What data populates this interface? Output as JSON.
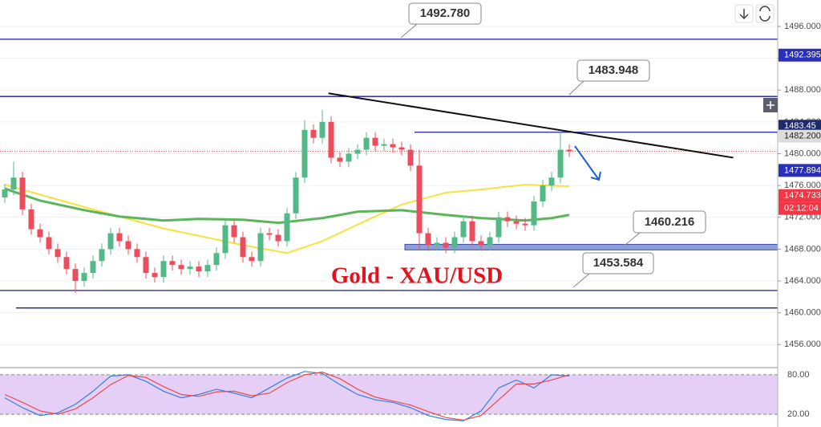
{
  "chart_data": {
    "type": "candlestick",
    "title": "Gold - XAU/USD",
    "ylim": [
      1453.4,
      1499.33
    ],
    "yticks": [
      {
        "value": 1456,
        "label": "1456.000"
      },
      {
        "value": 1460,
        "label": "1460.000"
      },
      {
        "value": 1464,
        "label": "1464.000"
      },
      {
        "value": 1468,
        "label": "1468.000"
      },
      {
        "value": 1472,
        "label": "1472.000"
      },
      {
        "value": 1476,
        "label": "1476.000"
      },
      {
        "value": 1480,
        "label": "1480.000"
      },
      {
        "value": 1484,
        "label": "1484.000"
      },
      {
        "value": 1488,
        "label": "1488.000"
      },
      {
        "value": 1492,
        "label": "1492.000"
      },
      {
        "value": 1496,
        "label": "1496.000"
      }
    ],
    "grid": true,
    "candles": {
      "up_color": "#53b987",
      "down_color": "#eb4d5c",
      "open": [
        1474.5,
        1475.5,
        1477.0,
        1473.0,
        1470.5,
        1469.5,
        1468.0,
        1467.0,
        1465.5,
        1464.0,
        1465.0,
        1466.5,
        1468.0,
        1470.0,
        1469.0,
        1468.0,
        1467.0,
        1465.0,
        1464.5,
        1466.5,
        1466.0,
        1465.5,
        1465.8,
        1465.2,
        1466.0,
        1467.5,
        1471.0,
        1469.5,
        1467.0,
        1466.5,
        1470.0,
        1469.8,
        1469.0,
        1472.5,
        1477.0,
        1483.0,
        1482.0,
        1484.0,
        1479.5,
        1479.0,
        1480.0,
        1480.5,
        1482.0,
        1481.0,
        1481.2,
        1480.8,
        1480.5,
        1478.5,
        1470.0,
        1468.5,
        1468.8,
        1468.2,
        1469.5,
        1471.5,
        1469.0,
        1468.5,
        1469.5,
        1472.0,
        1471.5,
        1471.2,
        1471.0,
        1474.0,
        1476.0,
        1477.0,
        1480.5
      ],
      "high": [
        1476.2,
        1479.0,
        1477.7,
        1473.7,
        1471.2,
        1470.2,
        1468.7,
        1467.7,
        1466.2,
        1465.7,
        1467.2,
        1468.7,
        1470.7,
        1470.7,
        1469.7,
        1468.7,
        1467.7,
        1465.7,
        1467.2,
        1467.2,
        1466.7,
        1466.5,
        1466.5,
        1466.7,
        1468.2,
        1471.7,
        1471.7,
        1470.2,
        1467.7,
        1470.7,
        1470.7,
        1470.5,
        1473.2,
        1477.7,
        1484.2,
        1483.7,
        1485.5,
        1484.7,
        1480.2,
        1480.7,
        1481.2,
        1482.7,
        1482.7,
        1481.9,
        1481.9,
        1481.5,
        1481.2,
        1480.5,
        1470.7,
        1469.5,
        1469.5,
        1470.2,
        1472.2,
        1472.2,
        1469.7,
        1470.2,
        1472.7,
        1472.7,
        1472.2,
        1471.9,
        1474.7,
        1476.7,
        1477.7,
        1482.8,
        1481.2
      ],
      "low": [
        1473.8,
        1474.8,
        1472.3,
        1469.8,
        1468.8,
        1467.3,
        1466.3,
        1464.8,
        1462.5,
        1463.3,
        1464.3,
        1465.8,
        1467.3,
        1468.3,
        1467.3,
        1466.3,
        1464.3,
        1463.8,
        1463.8,
        1465.3,
        1464.8,
        1464.8,
        1464.5,
        1464.5,
        1465.3,
        1466.8,
        1468.8,
        1466.3,
        1465.8,
        1465.8,
        1469.1,
        1468.3,
        1468.3,
        1471.8,
        1476.3,
        1481.3,
        1481.3,
        1478.8,
        1478.3,
        1478.3,
        1479.3,
        1479.8,
        1480.3,
        1480.3,
        1480.1,
        1479.8,
        1477.8,
        1468.0,
        1467.8,
        1467.8,
        1467.5,
        1467.5,
        1468.8,
        1468.3,
        1467.8,
        1467.8,
        1468.8,
        1470.8,
        1470.5,
        1470.3,
        1470.3,
        1473.3,
        1475.3,
        1476.3,
        1479.6
      ],
      "close": [
        1475.5,
        1477.0,
        1473.0,
        1470.5,
        1469.5,
        1468.0,
        1467.0,
        1465.5,
        1464.0,
        1465.0,
        1466.5,
        1468.0,
        1470.0,
        1469.0,
        1468.0,
        1467.0,
        1465.0,
        1464.5,
        1466.5,
        1466.0,
        1465.5,
        1465.8,
        1465.2,
        1466.0,
        1467.5,
        1471.0,
        1469.5,
        1467.0,
        1466.5,
        1470.0,
        1469.8,
        1469.0,
        1472.5,
        1477.0,
        1483.0,
        1482.0,
        1484.0,
        1479.5,
        1479.0,
        1480.0,
        1480.5,
        1482.0,
        1481.0,
        1481.2,
        1480.8,
        1480.5,
        1478.5,
        1470.0,
        1468.5,
        1468.8,
        1468.2,
        1469.5,
        1471.5,
        1469.0,
        1468.5,
        1469.5,
        1472.0,
        1471.5,
        1471.2,
        1471.0,
        1474.0,
        1476.0,
        1477.0,
        1480.5,
        1480.3
      ]
    },
    "moving_averages": [
      {
        "color": "#f5e23c",
        "x": [
          0,
          9,
          18,
          27,
          32,
          36,
          41,
          45,
          50,
          54,
          59,
          64
        ],
        "values": [
          1476.1,
          1473.3,
          1470.6,
          1468.5,
          1467.5,
          1469.0,
          1471.6,
          1473.6,
          1475.1,
          1475.5,
          1476.1,
          1475.9
        ]
      },
      {
        "color": "#5bb65b",
        "x": [
          0,
          4,
          9,
          13,
          18,
          22,
          27,
          31,
          36,
          40,
          45,
          50,
          54,
          59,
          62,
          64
        ],
        "values": [
          1475.6,
          1474.1,
          1472.9,
          1472.1,
          1471.6,
          1471.8,
          1471.7,
          1471.3,
          1471.9,
          1472.7,
          1472.9,
          1472.3,
          1471.9,
          1471.6,
          1471.9,
          1472.3
        ]
      }
    ],
    "levels": [
      {
        "value": 1494.4,
        "color": "#1a1aa8"
      },
      {
        "value": 1487.2,
        "color": "#1a1aa8"
      },
      {
        "value": 1482.7,
        "color": "#1a1aa8"
      },
      {
        "value": 1462.8,
        "color": "#1a1aa8"
      },
      {
        "value": 1460.6,
        "color": "#1a1aa8"
      }
    ],
    "support_zone": {
      "values": [
        1467.9,
        1468.6
      ],
      "color": "#8d9fd6"
    },
    "trendline": {
      "x": [
        36.7,
        82.6
      ],
      "y": [
        1487.6,
        1479.5
      ],
      "color": "#111111"
    },
    "last_price": 1480.3,
    "callouts": [
      "1492.780",
      "1483.948",
      "1460.216",
      "1453.584"
    ],
    "price_badges": [
      {
        "value": 1492.395,
        "label": "1492.395",
        "color": "#2a2fb9"
      },
      {
        "value": 1483.45,
        "label": "1483.45",
        "color": "#1d2a6b"
      },
      {
        "value": 1482.2,
        "label": "1482.200",
        "color": "#dddddd"
      },
      {
        "value": 1477.894,
        "label": "1477.894",
        "color": "#2a2fb9"
      },
      {
        "value": 1474.733,
        "label": "1474.733",
        "color": "#f23645"
      }
    ],
    "countdown": "02:12:04",
    "oscillator": {
      "ylim": [
        3,
        86
      ],
      "yticks": [
        {
          "value": 20,
          "label": "20.00"
        },
        {
          "value": 80,
          "label": "80.00"
        }
      ],
      "x": [
        0,
        2,
        4,
        6,
        8,
        10,
        12,
        14,
        16,
        18,
        20,
        22,
        24,
        26,
        28,
        30,
        32,
        34,
        36,
        38,
        40,
        42,
        44,
        46,
        48,
        50,
        52,
        54,
        56,
        58,
        60,
        62,
        64
      ],
      "series": [
        {
          "color": "#2f7fe0",
          "values": [
            45,
            30,
            18,
            22,
            35,
            55,
            78,
            80,
            70,
            55,
            45,
            50,
            58,
            52,
            45,
            60,
            75,
            85,
            82,
            65,
            50,
            42,
            38,
            30,
            18,
            12,
            10,
            25,
            60,
            72,
            60,
            80,
            78
          ]
        },
        {
          "color": "#e84a4a",
          "values": [
            50,
            38,
            25,
            20,
            28,
            45,
            65,
            79,
            76,
            62,
            50,
            47,
            54,
            55,
            48,
            52,
            68,
            80,
            84,
            74,
            58,
            46,
            40,
            34,
            24,
            15,
            11,
            18,
            42,
            66,
            66,
            72,
            80
          ]
        }
      ]
    }
  }
}
